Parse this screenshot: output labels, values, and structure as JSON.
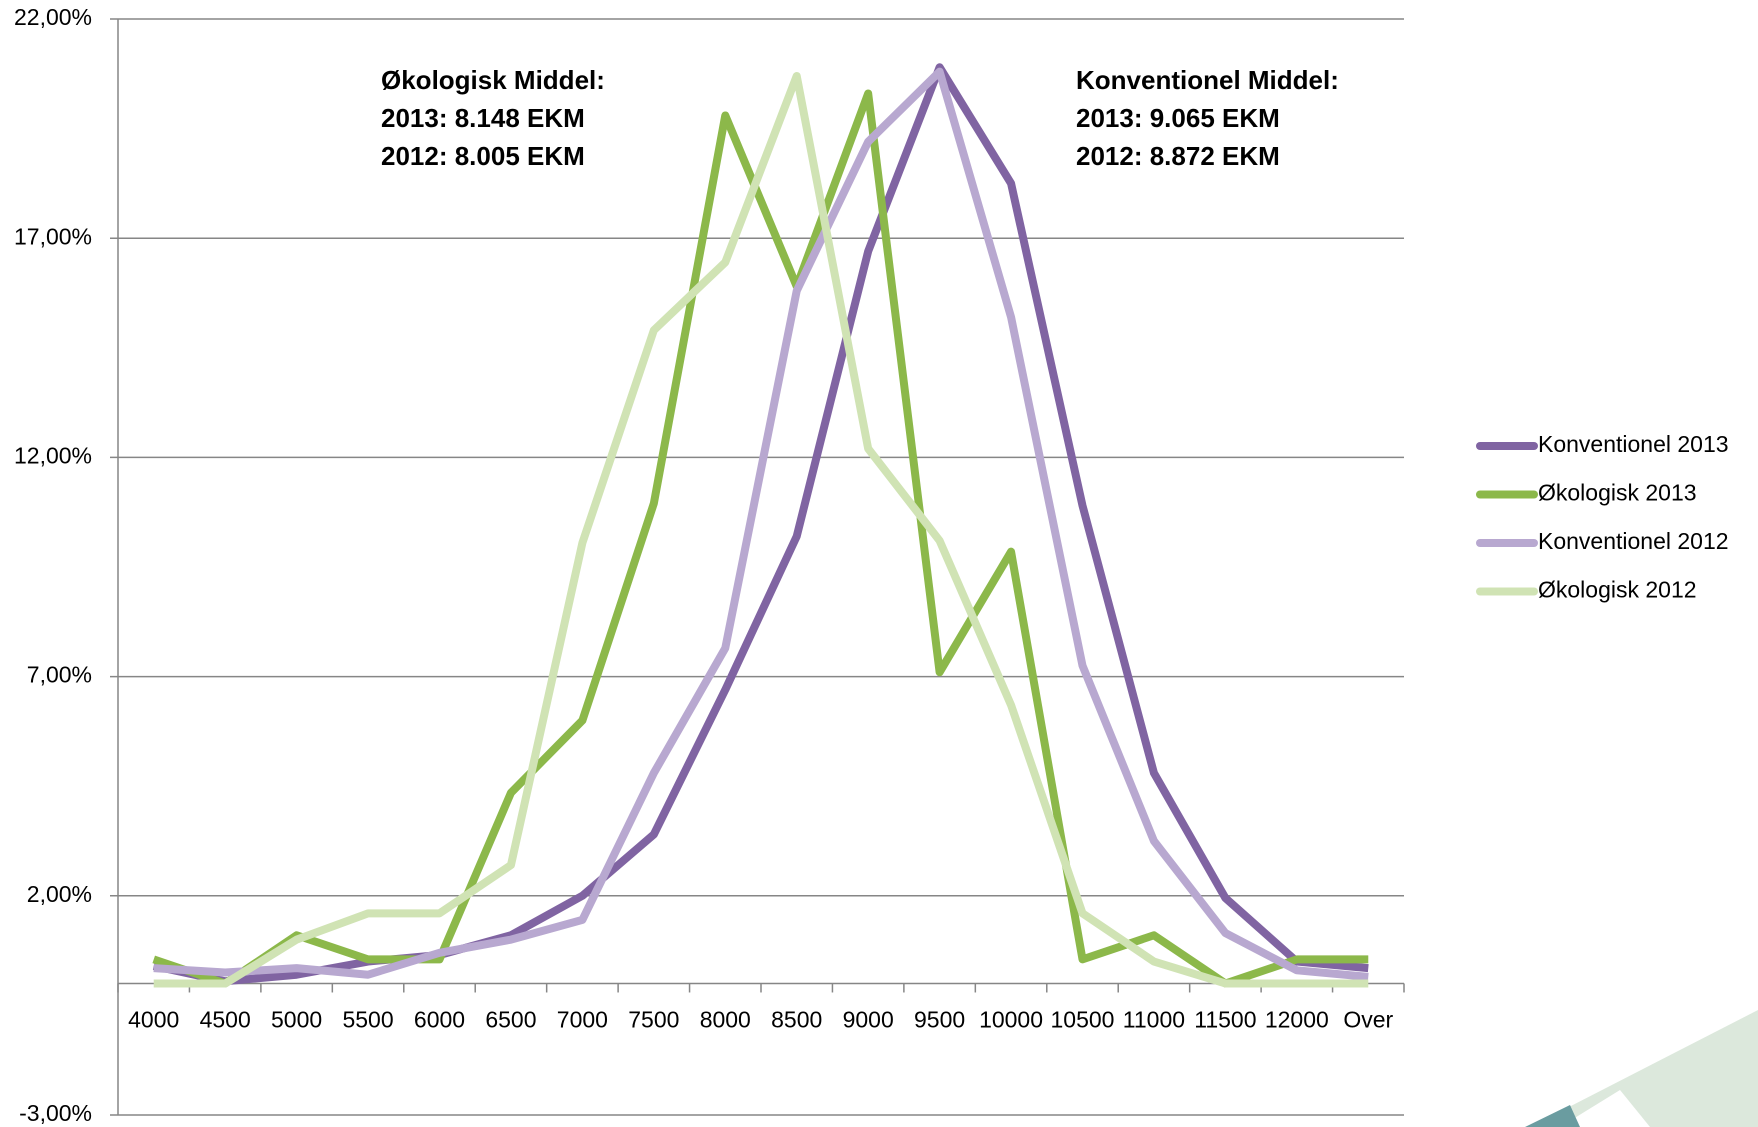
{
  "chart_data": {
    "type": "line",
    "categories": [
      "4000",
      "4500",
      "5000",
      "5500",
      "6000",
      "6500",
      "7000",
      "7500",
      "8000",
      "8500",
      "9000",
      "9500",
      "10000",
      "10500",
      "11000",
      "11500",
      "12000",
      "Over"
    ],
    "series": [
      {
        "name": "Konventionel 2013",
        "color": "#8064a2",
        "values": [
          0.4,
          0.05,
          0.2,
          0.5,
          0.65,
          1.1,
          2.0,
          3.4,
          6.7,
          10.2,
          16.7,
          20.9,
          18.25,
          10.9,
          4.8,
          1.95,
          0.5,
          0.35
        ]
      },
      {
        "name": "Økologisk 2013",
        "color": "#8cb84a",
        "values": [
          0.55,
          0,
          1.1,
          0.55,
          0.55,
          4.35,
          6.0,
          10.95,
          19.8,
          15.9,
          20.3,
          7.1,
          9.85,
          0.55,
          1.1,
          0,
          0.55,
          0.55
        ]
      },
      {
        "name": "Konventionel 2012",
        "color": "#b8a8d0",
        "values": [
          0.35,
          0.25,
          0.35,
          0.2,
          0.7,
          1.0,
          1.45,
          4.8,
          7.65,
          15.8,
          19.2,
          20.8,
          15.2,
          7.25,
          3.25,
          1.15,
          0.3,
          0.15
        ]
      },
      {
        "name": "Økologisk 2012",
        "color": "#d0e3b4",
        "values": [
          0,
          0,
          1.0,
          1.6,
          1.6,
          2.7,
          10.05,
          14.9,
          16.45,
          20.7,
          12.2,
          10.1,
          6.35,
          1.6,
          0.5,
          0,
          0,
          0
        ]
      }
    ],
    "ylim": [
      -3,
      22
    ],
    "yticks": [
      {
        "value": -3,
        "label": "-3,00%"
      },
      {
        "value": 2,
        "label": "2,00%"
      },
      {
        "value": 7,
        "label": "7,00%"
      },
      {
        "value": 12,
        "label": "12,00%"
      },
      {
        "value": 17,
        "label": "17,00%"
      },
      {
        "value": 22,
        "label": "22,00%"
      }
    ],
    "grid": true,
    "legend": "right",
    "annotations": [
      {
        "lines": [
          "Økologisk Middel:",
          "2013: 8.148 EKM",
          "2012: 8.005 EKM"
        ]
      },
      {
        "lines": [
          "Konventionel Middel:",
          "2013: 9.065 EKM",
          "2012: 8.872 EKM"
        ]
      }
    ]
  }
}
